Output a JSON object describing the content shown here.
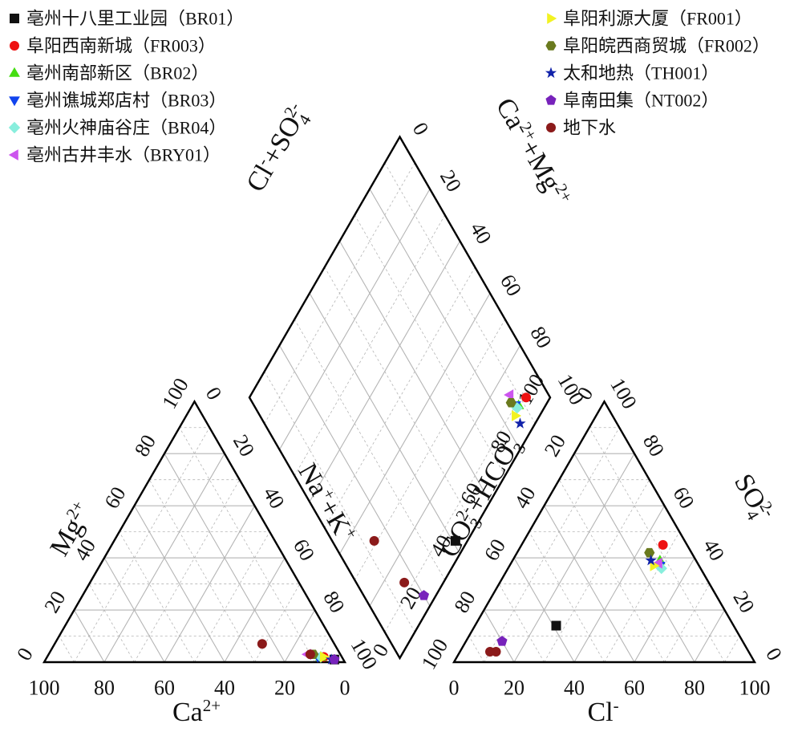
{
  "chart_data": {
    "type": "scatter",
    "subtype": "piper-trilinear-diagram",
    "grid": true,
    "axes": {
      "cation": {
        "mg_label": "Mg2+",
        "ca_label": "Ca2+",
        "nak_label": "Na++K+",
        "ticks": [
          "0",
          "20",
          "40",
          "60",
          "80",
          "100"
        ]
      },
      "anion": {
        "co3hco3_label": "CO32-+HCO3-",
        "cl_label": "Cl-",
        "so4_label": "SO42-",
        "ticks": [
          "0",
          "20",
          "40",
          "60",
          "80",
          "100"
        ]
      },
      "diamond": {
        "left_label": "Cl-+SO42-",
        "right_label": "Ca2++Mg2+",
        "ticks": [
          "0",
          "20",
          "40",
          "60",
          "80",
          "100"
        ]
      }
    },
    "legend": [
      {
        "label": "亳州十八里工业园（BR01）",
        "marker": "square",
        "color": "#111111"
      },
      {
        "label": "阜阳西南新城（FR003）",
        "marker": "circle",
        "color": "#ee1111"
      },
      {
        "label": "亳州南部新区（BR02）",
        "marker": "triangle-up",
        "color": "#44dd11"
      },
      {
        "label": "亳州谯城郑店村（BR03）",
        "marker": "triangle-down",
        "color": "#1144ee"
      },
      {
        "label": "亳州火神庙谷庄（BR04）",
        "marker": "diamond",
        "color": "#88eedd"
      },
      {
        "label": "亳州古井丰水（BRY01）",
        "marker": "triangle-left",
        "color": "#cc55ee"
      },
      {
        "label": "阜阳利源大厦（FR001）",
        "marker": "triangle-right",
        "color": "#f2f222"
      },
      {
        "label": "阜阳皖西商贸城（FR002）",
        "marker": "hexagon",
        "color": "#6a7a1e"
      },
      {
        "label": "太和地热（TH001）",
        "marker": "star",
        "color": "#1122aa"
      },
      {
        "label": "阜南田集（NT002）",
        "marker": "pentagon",
        "color": "#7722bb"
      },
      {
        "label": "地下水",
        "marker": "circle",
        "color": "#8b1a1a"
      }
    ],
    "series": [
      {
        "name": "亳州十八里工业园（BR01）",
        "cation": {
          "ca": 3,
          "mg": 1
        },
        "anion": {
          "cl": 27,
          "so4": 14
        }
      },
      {
        "name": "阜阳西南新城（FR003）",
        "cation": {
          "ca": 6,
          "mg": 2
        },
        "anion": {
          "cl": 47,
          "so4": 45
        }
      },
      {
        "name": "亳州南部新区（BR02）",
        "cation": {
          "ca": 7,
          "mg": 2
        },
        "anion": {
          "cl": 49,
          "so4": 39
        }
      },
      {
        "name": "亳州谯城郑店村（BR03）",
        "cation": {
          "ca": 8,
          "mg": 2
        },
        "anion": {
          "cl": 50,
          "so4": 37
        }
      },
      {
        "name": "亳州火神庙谷庄（BR04）",
        "cation": {
          "ca": 7,
          "mg": 2
        },
        "anion": {
          "cl": 51,
          "so4": 36
        }
      },
      {
        "name": "亳州古井丰水（BRY01）",
        "cation": {
          "ca": 11,
          "mg": 3
        },
        "anion": {
          "cl": 49,
          "so4": 38
        }
      },
      {
        "name": "阜阳利源大厦（FR001）",
        "cation": {
          "ca": 6,
          "mg": 2
        },
        "anion": {
          "cl": 48,
          "so4": 37
        }
      },
      {
        "name": "阜阳皖西商贸城（FR002）",
        "cation": {
          "ca": 9,
          "mg": 3
        },
        "anion": {
          "cl": 44,
          "so4": 42
        }
      },
      {
        "name": "太和地热（TH001）",
        "cation": {
          "ca": 4,
          "mg": 1
        },
        "anion": {
          "cl": 46,
          "so4": 39
        }
      },
      {
        "name": "阜南田集（NT002）",
        "cation": {
          "ca": 3,
          "mg": 1
        },
        "anion": {
          "cl": 12,
          "so4": 8
        }
      },
      {
        "name": "地下水",
        "cation": {
          "ca": 24,
          "mg": 7
        },
        "anion": {
          "cl": 10,
          "so4": 4
        }
      },
      {
        "name": "地下水",
        "cation": {
          "ca": 10,
          "mg": 3
        },
        "anion": {
          "cl": 12,
          "so4": 4
        }
      }
    ]
  }
}
